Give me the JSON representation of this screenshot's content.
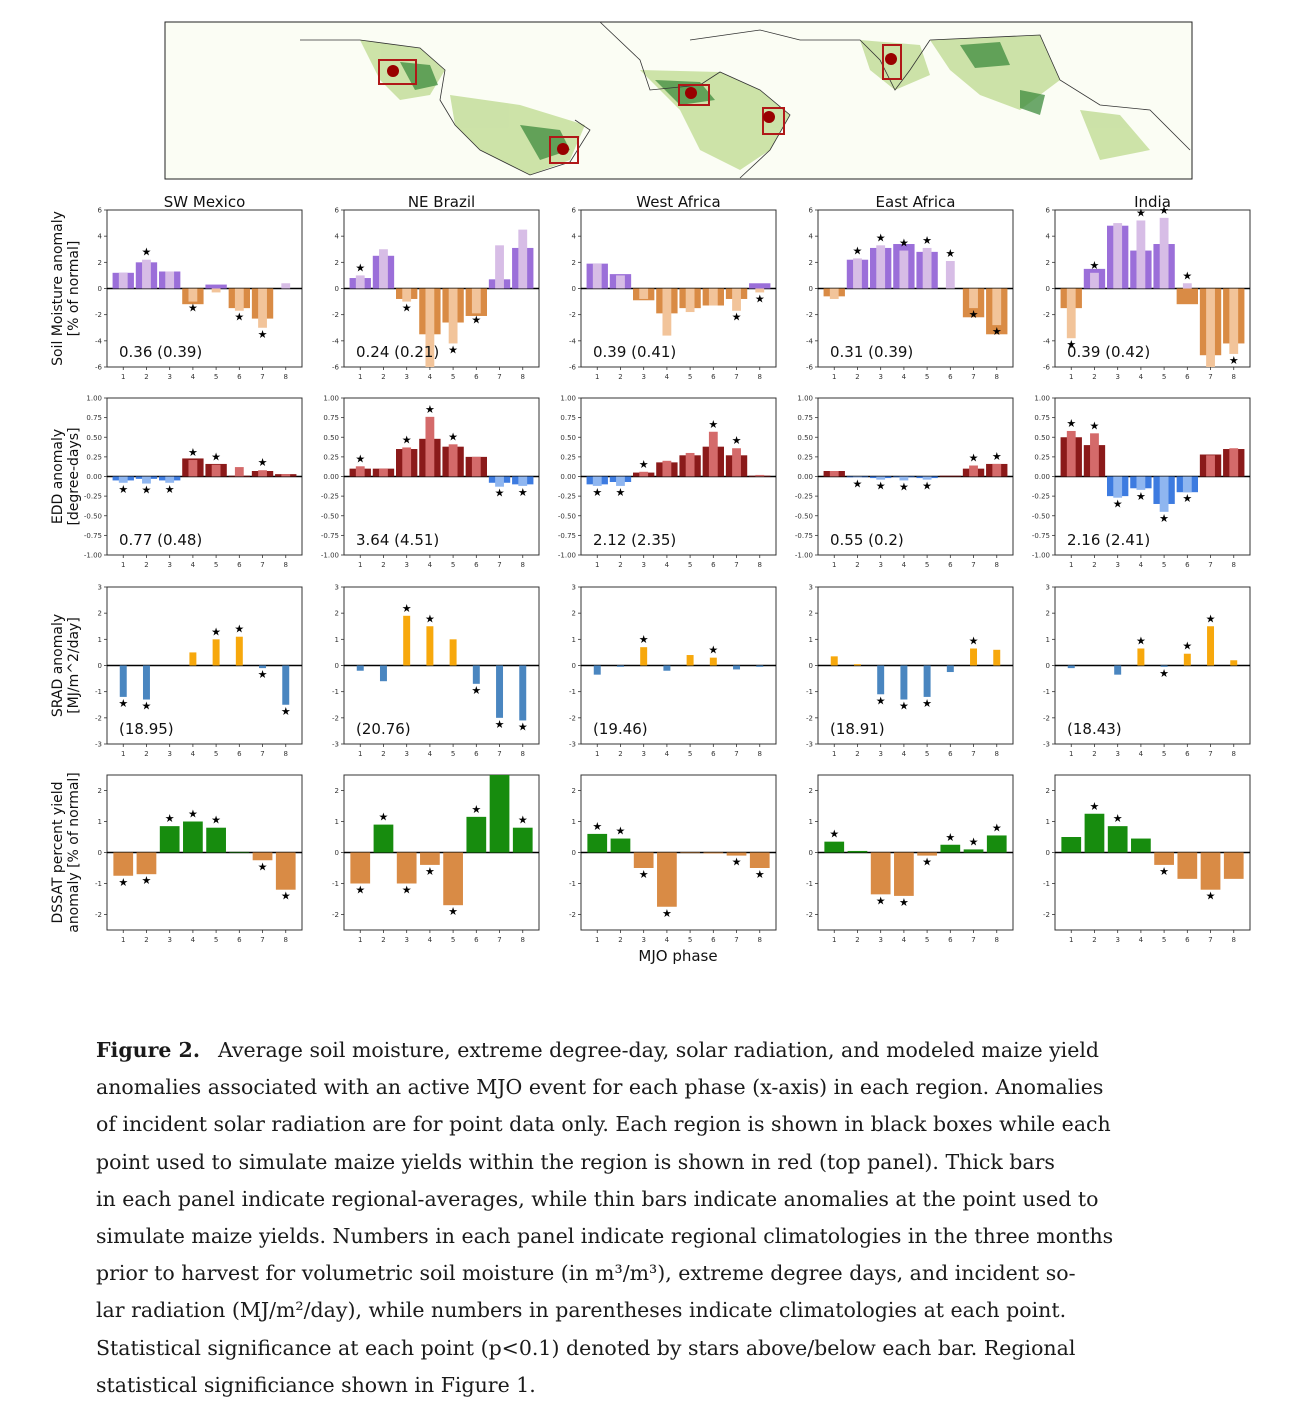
{
  "figure": {
    "regions": [
      "SW Mexico",
      "NE Brazil",
      "West Africa",
      "East Africa",
      "India"
    ],
    "row_ylabels": [
      [
        "Soil Moisture anomaly",
        "[% of normal]"
      ],
      [
        "EDD anomaly",
        "[degree-days]"
      ],
      [
        "SRAD anomaly",
        "[MJ/m^2/day]"
      ],
      [
        "DSSAT percent yield",
        "anomaly [% of normal]"
      ]
    ],
    "xlabel": "MJO phase",
    "phase_ticks": [
      "1",
      "2",
      "3",
      "4",
      "5",
      "6",
      "7",
      "8"
    ]
  },
  "colors": {
    "sm_pos_thick": "#9b6fd9",
    "sm_pos_thin": "#d7bde6",
    "sm_neg_thick": "#d98b45",
    "sm_neg_thin": "#f2c49a",
    "edd_pos_thick": "#8b1a1a",
    "edd_pos_thin": "#d46a6a",
    "edd_neg_thick": "#3d7be0",
    "edd_neg_thin": "#8fb6f0",
    "srad_pos": "#f7a80c",
    "srad_neg": "#4a86c0",
    "yield_pos": "#178c0e",
    "yield_neg": "#d98b45",
    "map_box": "#b01818",
    "map_dot": "#990000"
  },
  "chart_data": [
    {
      "type": "bar",
      "row": "soil_moisture",
      "ylim": [
        -6,
        6
      ],
      "yticks": [
        -6,
        -4,
        -2,
        0,
        2,
        4,
        6
      ],
      "categories": [
        "1",
        "2",
        "3",
        "4",
        "5",
        "6",
        "7",
        "8"
      ],
      "panels": [
        {
          "region": "SW Mexico",
          "label": "0.36 (0.39)",
          "series": [
            {
              "name": "regional",
              "values": [
                1.2,
                2.0,
                1.3,
                -1.2,
                0.3,
                -1.5,
                -2.3,
                0.0
              ]
            },
            {
              "name": "point",
              "values": [
                1.2,
                2.2,
                1.3,
                -1.0,
                -0.3,
                -1.7,
                -3.0,
                0.4
              ]
            }
          ],
          "stars": [
            false,
            true,
            false,
            true,
            false,
            true,
            true,
            false
          ]
        },
        {
          "region": "NE Brazil",
          "label": "0.24 (0.21)",
          "series": [
            {
              "name": "regional",
              "values": [
                0.8,
                2.5,
                -0.8,
                -3.5,
                -2.6,
                -2.1,
                0.7,
                3.1
              ]
            },
            {
              "name": "point",
              "values": [
                1.0,
                3.0,
                -1.0,
                -6.0,
                -4.2,
                -1.9,
                3.3,
                4.5
              ]
            }
          ],
          "stars": [
            true,
            false,
            true,
            false,
            true,
            true,
            false,
            false
          ]
        },
        {
          "region": "West Africa",
          "label": "0.39 (0.41)",
          "series": [
            {
              "name": "regional",
              "values": [
                1.9,
                1.1,
                -0.9,
                -1.9,
                -1.5,
                -1.3,
                -0.8,
                0.4
              ]
            },
            {
              "name": "point",
              "values": [
                1.9,
                1.0,
                -0.8,
                -3.6,
                -1.8,
                -1.3,
                -1.7,
                -0.3
              ]
            }
          ],
          "stars": [
            false,
            false,
            false,
            false,
            false,
            false,
            true,
            true
          ]
        },
        {
          "region": "East Africa",
          "label": "0.31 (0.39)",
          "series": [
            {
              "name": "regional",
              "values": [
                -0.6,
                2.2,
                3.1,
                3.4,
                2.8,
                0.0,
                -2.2,
                -3.5
              ]
            },
            {
              "name": "point",
              "values": [
                -0.8,
                2.3,
                3.3,
                2.9,
                3.1,
                2.1,
                -1.5,
                -2.8
              ]
            }
          ],
          "stars": [
            false,
            true,
            true,
            true,
            true,
            true,
            true,
            true
          ]
        },
        {
          "region": "India",
          "label": "0.39 (0.42)",
          "series": [
            {
              "name": "regional",
              "values": [
                -1.5,
                1.5,
                4.8,
                2.9,
                3.4,
                -1.2,
                -5.1,
                -4.2
              ]
            },
            {
              "name": "point",
              "values": [
                -3.8,
                1.2,
                5.0,
                5.2,
                5.4,
                0.4,
                -6.0,
                -5.0
              ]
            }
          ],
          "stars": [
            true,
            true,
            false,
            true,
            true,
            true,
            false,
            true
          ]
        }
      ]
    },
    {
      "type": "bar",
      "row": "edd",
      "ylim": [
        -1.0,
        1.0
      ],
      "yticks": [
        -1.0,
        -0.75,
        -0.5,
        -0.25,
        0.0,
        0.25,
        0.5,
        0.75,
        1.0
      ],
      "categories": [
        "1",
        "2",
        "3",
        "4",
        "5",
        "6",
        "7",
        "8"
      ],
      "panels": [
        {
          "region": "SW Mexico",
          "label": "0.77 (0.48)",
          "series": [
            {
              "name": "regional",
              "values": [
                -0.05,
                -0.03,
                -0.05,
                0.23,
                0.16,
                0.01,
                0.07,
                0.03
              ]
            },
            {
              "name": "point",
              "values": [
                -0.08,
                -0.09,
                -0.08,
                0.21,
                0.15,
                0.12,
                0.08,
                0.03
              ]
            }
          ],
          "stars": [
            true,
            true,
            true,
            true,
            true,
            false,
            true,
            false
          ]
        },
        {
          "region": "NE Brazil",
          "label": "3.64 (4.51)",
          "series": [
            {
              "name": "regional",
              "values": [
                0.1,
                0.1,
                0.35,
                0.48,
                0.38,
                0.25,
                -0.08,
                -0.1
              ]
            },
            {
              "name": "point",
              "values": [
                0.13,
                0.1,
                0.37,
                0.76,
                0.41,
                0.25,
                -0.13,
                -0.12
              ]
            }
          ],
          "stars": [
            true,
            false,
            true,
            true,
            true,
            false,
            true,
            true
          ]
        },
        {
          "region": "West Africa",
          "label": "2.12 (2.35)",
          "series": [
            {
              "name": "regional",
              "values": [
                -0.1,
                -0.07,
                0.05,
                0.18,
                0.27,
                0.38,
                0.27,
                0.01
              ]
            },
            {
              "name": "point",
              "values": [
                -0.12,
                -0.12,
                0.06,
                0.2,
                0.3,
                0.57,
                0.36,
                0.02
              ]
            }
          ],
          "stars": [
            true,
            true,
            true,
            false,
            false,
            true,
            true,
            false
          ]
        },
        {
          "region": "East Africa",
          "label": "0.55 (0.2)",
          "series": [
            {
              "name": "regional",
              "values": [
                0.07,
                -0.01,
                -0.02,
                -0.01,
                -0.02,
                0.01,
                0.1,
                0.16
              ]
            },
            {
              "name": "point",
              "values": [
                0.07,
                -0.01,
                -0.04,
                -0.05,
                -0.04,
                0.0,
                0.14,
                0.16
              ]
            }
          ],
          "stars": [
            false,
            true,
            true,
            true,
            true,
            false,
            true,
            true
          ]
        },
        {
          "region": "India",
          "label": "2.16 (2.41)",
          "series": [
            {
              "name": "regional",
              "values": [
                0.5,
                0.4,
                -0.25,
                -0.15,
                -0.35,
                -0.2,
                0.28,
                0.35
              ]
            },
            {
              "name": "point",
              "values": [
                0.58,
                0.55,
                -0.27,
                -0.17,
                -0.45,
                -0.2,
                0.27,
                0.36
              ]
            }
          ],
          "stars": [
            true,
            true,
            true,
            true,
            true,
            true,
            false,
            false
          ]
        }
      ]
    },
    {
      "type": "bar",
      "row": "srad",
      "ylim": [
        -3,
        3
      ],
      "yticks": [
        -3,
        -2,
        -1,
        0,
        1,
        2,
        3
      ],
      "categories": [
        "1",
        "2",
        "3",
        "4",
        "5",
        "6",
        "7",
        "8"
      ],
      "panels": [
        {
          "region": "SW Mexico",
          "label": "(18.95)",
          "values": [
            -1.2,
            -1.3,
            0.0,
            0.5,
            1.0,
            1.1,
            -0.1,
            -1.5
          ],
          "stars": [
            true,
            true,
            false,
            false,
            true,
            true,
            true,
            true
          ]
        },
        {
          "region": "NE Brazil",
          "label": "(20.76)",
          "values": [
            -0.2,
            -0.6,
            1.9,
            1.5,
            1.0,
            -0.7,
            -2.0,
            -2.1
          ],
          "stars": [
            false,
            false,
            true,
            true,
            false,
            true,
            true,
            true
          ]
        },
        {
          "region": "West Africa",
          "label": "(19.46)",
          "values": [
            -0.35,
            -0.05,
            0.7,
            -0.2,
            0.4,
            0.3,
            -0.15,
            -0.05
          ],
          "stars": [
            false,
            false,
            true,
            false,
            false,
            true,
            false,
            false
          ]
        },
        {
          "region": "East Africa",
          "label": "(18.91)",
          "values": [
            0.35,
            0.05,
            -1.1,
            -1.3,
            -1.2,
            -0.25,
            0.65,
            0.6
          ],
          "stars": [
            false,
            false,
            true,
            true,
            true,
            false,
            true,
            false
          ]
        },
        {
          "region": "India",
          "label": "(18.43)",
          "values": [
            -0.1,
            0.0,
            -0.35,
            0.65,
            -0.05,
            0.45,
            1.5,
            0.2
          ],
          "stars": [
            false,
            false,
            false,
            true,
            true,
            true,
            true,
            false
          ]
        }
      ]
    },
    {
      "type": "bar",
      "row": "dssat_yield",
      "ylim": [
        -2.5,
        2.5
      ],
      "yticks": [
        -2,
        -1,
        0,
        1,
        2
      ],
      "categories": [
        "1",
        "2",
        "3",
        "4",
        "5",
        "6",
        "7",
        "8"
      ],
      "panels": [
        {
          "region": "SW Mexico",
          "values": [
            -0.75,
            -0.7,
            0.85,
            1.0,
            0.8,
            0.02,
            -0.25,
            -1.2
          ],
          "stars": [
            true,
            true,
            true,
            true,
            true,
            false,
            true,
            true
          ]
        },
        {
          "region": "NE Brazil",
          "values": [
            -1.0,
            0.9,
            -1.0,
            -0.4,
            -1.7,
            1.15,
            2.5,
            0.8
          ],
          "stars": [
            true,
            true,
            true,
            true,
            true,
            true,
            false,
            true
          ]
        },
        {
          "region": "West Africa",
          "values": [
            0.6,
            0.45,
            -0.5,
            -1.75,
            -0.02,
            -0.03,
            -0.1,
            -0.5
          ],
          "stars": [
            true,
            true,
            true,
            true,
            false,
            false,
            true,
            true
          ]
        },
        {
          "region": "East Africa",
          "values": [
            0.35,
            0.05,
            -1.35,
            -1.4,
            -0.1,
            0.25,
            0.1,
            0.55
          ],
          "stars": [
            true,
            false,
            true,
            true,
            true,
            true,
            true,
            true
          ]
        },
        {
          "region": "India",
          "values": [
            0.5,
            1.25,
            0.85,
            0.45,
            -0.4,
            -0.85,
            -1.2,
            -0.85
          ],
          "stars": [
            false,
            true,
            true,
            false,
            true,
            false,
            true,
            false
          ]
        }
      ]
    }
  ],
  "caption": {
    "label": "Figure 2.",
    "lines": [
      "Average soil moisture, extreme degree-day, solar radiation, and modeled maize yield",
      "anomalies associated with an active MJO event for each phase (x-axis) in each region. Anomalies",
      "of incident solar radiation are for point data only. Each region is shown in black boxes while each",
      "point used to simulate maize yields within the region is shown in red (top panel). Thick bars",
      "in each panel indicate regional-averages, while thin bars indicate anomalies at the point used to",
      "simulate maize yields. Numbers in each panel indicate regional climatologies in the three months",
      "prior to harvest for volumetric soil moisture (in m³/m³), extreme degree days, and incident so-",
      "lar radiation (MJ/m²/day), while numbers in parentheses indicate climatologies at each point.",
      "Statistical significance at each point (p<0.1) denoted by stars above/below each bar. Regional",
      "statistical significiance shown in Figure 1."
    ]
  }
}
